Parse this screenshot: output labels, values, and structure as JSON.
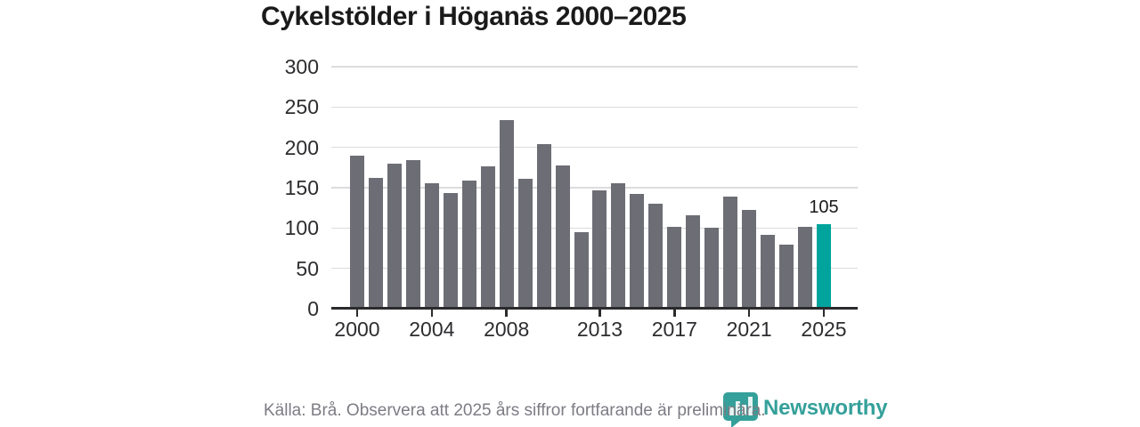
{
  "title": "Cykelstölder i Höganäs 2000–2025",
  "source_note": "Källa: Brå. Observera att 2025 års siffror fortfarande är preliminära.",
  "brand": {
    "name": "Newsworthy",
    "color": "#35a09a",
    "icon": "bar-chart-speech-bubble-icon"
  },
  "colors": {
    "bar": "#6d6d75",
    "highlight": "#00a49c",
    "grid": "#dcdcdf",
    "axis": "#2b2b2e",
    "text": "#1a1a1a",
    "muted": "#7c7c84"
  },
  "chart_data": {
    "type": "bar",
    "title": "Cykelstölder i Höganäs 2000–2025",
    "xlabel": "",
    "ylabel": "",
    "x": [
      2000,
      2001,
      2002,
      2003,
      2004,
      2005,
      2006,
      2007,
      2008,
      2009,
      2010,
      2011,
      2012,
      2013,
      2014,
      2015,
      2016,
      2017,
      2018,
      2019,
      2020,
      2021,
      2022,
      2023,
      2024,
      2025
    ],
    "values": [
      190,
      162,
      180,
      184,
      155,
      143,
      159,
      177,
      234,
      161,
      204,
      178,
      95,
      147,
      156,
      142,
      130,
      101,
      116,
      100,
      139,
      122,
      91,
      79,
      102,
      105
    ],
    "highlight_index": 25,
    "highlight_value_label": "105",
    "yticks": [
      0,
      50,
      100,
      150,
      200,
      250,
      300
    ],
    "xticks": [
      2000,
      2004,
      2008,
      2013,
      2017,
      2021,
      2025
    ],
    "ylim": [
      0,
      300
    ],
    "grid": true,
    "legend": false
  }
}
